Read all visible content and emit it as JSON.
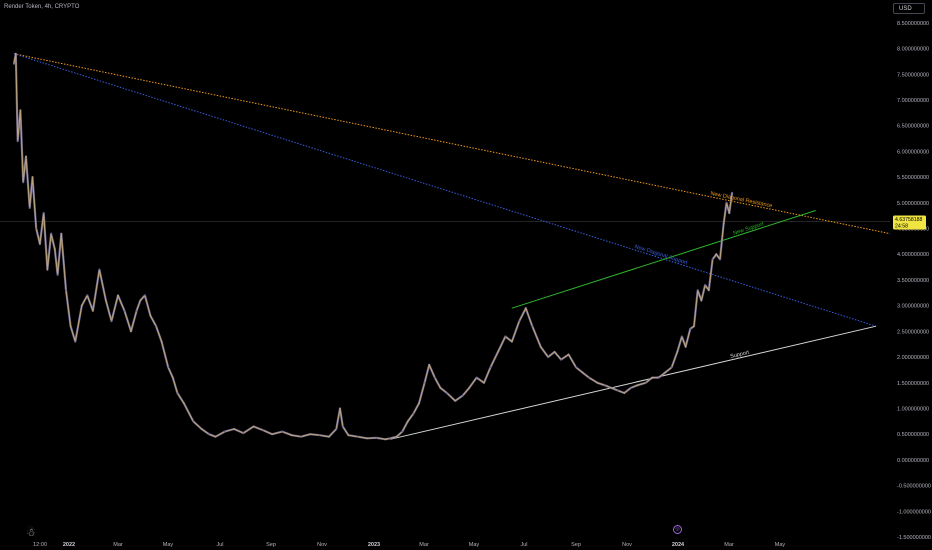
{
  "header": {
    "title": "Render Token, 4h, CRYPTO"
  },
  "currency": "USD",
  "price_tag": {
    "value": "4.63758188",
    "countdown": "24:58",
    "color": "#f0e442"
  },
  "icons": {
    "logo": "tradingview-logo-icon",
    "marker": "event-marker-icon"
  },
  "colors": {
    "background": "#000000",
    "candle_up": "#b9a27a",
    "candle_down": "#6f6896",
    "resistance": "#f29a1a",
    "diagonal_support": "#3a5ee0",
    "new_support": "#2cb52c",
    "support": "#d8d8d8"
  },
  "chart_data": {
    "type": "line",
    "title": "Render Token, 4h, CRYPTO",
    "xlabel": "",
    "ylabel": "",
    "x_ticks": [
      "12:00",
      "2022",
      "Mar",
      "May",
      "Jul",
      "Sep",
      "Nov",
      "2023",
      "Mar",
      "May",
      "Jul",
      "Sep",
      "Nov",
      "2024",
      "Mar",
      "May"
    ],
    "y_ticks": [
      "-1.500000000",
      "-1.000000000",
      "-0.500000000",
      "0.000000000",
      "0.500000000",
      "1.000000000",
      "1.500000000",
      "2.000000000",
      "2.500000000",
      "3.000000000",
      "3.500000000",
      "4.000000000",
      "4.500000000",
      "5.000000000",
      "5.500000000",
      "6.000000000",
      "6.500000000",
      "7.000000000",
      "7.500000000",
      "8.000000000",
      "8.500000000"
    ],
    "ylim": [
      -1.5,
      8.75
    ],
    "xlim": [
      "2021-11-05",
      "2024-06-20"
    ],
    "grid": false,
    "series": [
      {
        "x": [
          "2021-11-20",
          "2021-11-22",
          "2021-11-24",
          "2021-11-27",
          "2021-11-30",
          "2021-12-03",
          "2021-12-07",
          "2021-12-10",
          "2021-12-14",
          "2021-12-18",
          "2021-12-22",
          "2021-12-26",
          "2021-12-30",
          "2022-01-03",
          "2022-01-06",
          "2022-01-10",
          "2022-01-15",
          "2022-01-20",
          "2022-01-25",
          "2022-02-01",
          "2022-02-07",
          "2022-02-13",
          "2022-02-20",
          "2022-02-27",
          "2022-03-05",
          "2022-03-12",
          "2022-03-19",
          "2022-03-26",
          "2022-04-01",
          "2022-04-05",
          "2022-04-10",
          "2022-04-16",
          "2022-04-22",
          "2022-04-28",
          "2022-05-05",
          "2022-05-10",
          "2022-05-15",
          "2022-05-22",
          "2022-06-01",
          "2022-06-10",
          "2022-06-18",
          "2022-06-25",
          "2022-07-05",
          "2022-07-15",
          "2022-07-25",
          "2022-08-05",
          "2022-08-15",
          "2022-08-25",
          "2022-09-05",
          "2022-09-15",
          "2022-09-25",
          "2022-10-05",
          "2022-10-15",
          "2022-10-25",
          "2022-11-02",
          "2022-11-06",
          "2022-11-09",
          "2022-11-15",
          "2022-11-25",
          "2022-12-05",
          "2022-12-15",
          "2022-12-25",
          "2022-12-30",
          "2023-01-06",
          "2023-01-12",
          "2023-01-18",
          "2023-01-24",
          "2023-01-30",
          "2023-02-05",
          "2023-02-10",
          "2023-02-16",
          "2023-02-22",
          "2023-03-01",
          "2023-03-10",
          "2023-03-18",
          "2023-03-25",
          "2023-04-02",
          "2023-04-10",
          "2023-04-17",
          "2023-04-25",
          "2023-05-03",
          "2023-05-10",
          "2023-05-18",
          "2023-05-25",
          "2023-06-01",
          "2023-06-10",
          "2023-06-18",
          "2023-06-25",
          "2023-07-02",
          "2023-07-10",
          "2023-07-18",
          "2023-07-25",
          "2023-08-01",
          "2023-08-10",
          "2023-08-18",
          "2023-08-25",
          "2023-09-01",
          "2023-09-08",
          "2023-09-15",
          "2023-09-22",
          "2023-10-01",
          "2023-10-08",
          "2023-10-15",
          "2023-10-22",
          "2023-10-29",
          "2023-11-04",
          "2023-11-09",
          "2023-11-13",
          "2023-11-18",
          "2023-11-22",
          "2023-11-26",
          "2023-11-30",
          "2023-12-04",
          "2023-12-08",
          "2023-12-12",
          "2023-12-16",
          "2023-12-20",
          "2023-12-24",
          "2023-12-27",
          "2023-12-30",
          "2024-01-02"
        ],
        "values": [
          7.7,
          7.9,
          6.2,
          6.8,
          5.4,
          5.9,
          4.9,
          5.5,
          4.5,
          4.2,
          4.8,
          3.7,
          4.4,
          4.1,
          3.6,
          4.4,
          3.3,
          2.6,
          2.3,
          3.0,
          3.2,
          2.9,
          3.7,
          3.1,
          2.7,
          3.2,
          2.9,
          2.5,
          2.9,
          3.1,
          3.2,
          2.8,
          2.6,
          2.3,
          1.8,
          1.6,
          1.3,
          1.1,
          0.75,
          0.6,
          0.5,
          0.45,
          0.55,
          0.6,
          0.52,
          0.65,
          0.58,
          0.5,
          0.55,
          0.48,
          0.45,
          0.5,
          0.48,
          0.45,
          0.6,
          1.0,
          0.65,
          0.48,
          0.45,
          0.42,
          0.43,
          0.4,
          0.42,
          0.45,
          0.55,
          0.75,
          0.9,
          1.1,
          1.5,
          1.85,
          1.6,
          1.4,
          1.3,
          1.15,
          1.25,
          1.4,
          1.6,
          1.5,
          1.8,
          2.1,
          2.4,
          2.3,
          2.7,
          2.95,
          2.6,
          2.2,
          2.0,
          2.1,
          1.95,
          2.05,
          1.8,
          1.7,
          1.6,
          1.5,
          1.45,
          1.4,
          1.35,
          1.3,
          1.4,
          1.45,
          1.5,
          1.6,
          1.6,
          1.7,
          1.8,
          2.1,
          2.4,
          2.2,
          2.55,
          2.6,
          3.3,
          3.1,
          3.4,
          3.3,
          3.9,
          4.0,
          3.9,
          4.6,
          5.0,
          4.8,
          5.2
        ]
      }
    ],
    "trendlines": [
      {
        "name": "New Diagonal Resistance",
        "x": [
          "2021-11-20",
          "2024-06-20"
        ],
        "y": [
          7.9,
          4.4
        ],
        "style": "dotted"
      },
      {
        "name": "New Diagonal Support",
        "x": [
          "2021-11-20",
          "2024-06-05"
        ],
        "y": [
          7.9,
          2.6
        ],
        "style": "dotted"
      },
      {
        "name": "New Support",
        "x": [
          "2023-05-10",
          "2024-04-01"
        ],
        "y": [
          2.95,
          4.85
        ],
        "style": "solid"
      },
      {
        "name": "Support",
        "x": [
          "2022-12-30",
          "2024-06-05"
        ],
        "y": [
          0.4,
          2.6
        ],
        "style": "solid"
      }
    ],
    "price_line": 4.63758188
  }
}
